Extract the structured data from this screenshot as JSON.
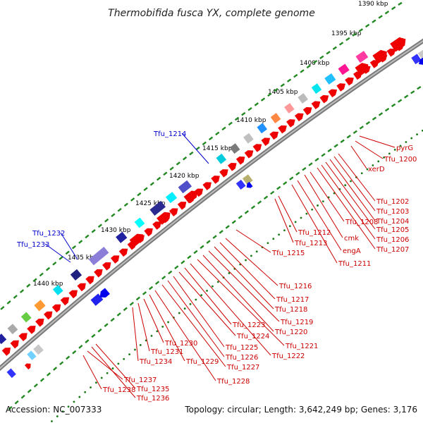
{
  "title": "Thermobifida fusca YX, complete genome",
  "footer": {
    "accession": "Accession: NC_007333",
    "summary": "Topology: circular; Length: 3,642,249 bp; Genes: 3,176"
  },
  "scale_labels": [
    "1390 kbp",
    "1395 kbp",
    "1400 kbp",
    "1405 kbp",
    "1410 kbp",
    "1415 kbp",
    "1420 kbp",
    "1425 kbp",
    "1430 kbp",
    "1435 kbp",
    "1440 kbp"
  ],
  "gene_labels": [
    "pyrG",
    "Tfu_1200",
    "xerD",
    "Tfu_1202",
    "Tfu_1203",
    "Tfu_1204",
    "Tfu_1205",
    "Tfu_1206",
    "Tfu_1207",
    "Tfu_1208",
    "cmk",
    "engA",
    "Tfu_1211",
    "Tfu_1212",
    "Tfu_1213",
    "Tfu_1214",
    "Tfu_1215",
    "Tfu_1216",
    "Tfu_1217",
    "Tfu_1218",
    "Tfu_1219",
    "Tfu_1220",
    "Tfu_1221",
    "Tfu_1222",
    "Tfu_1223",
    "Tfu_1224",
    "Tfu_1225",
    "Tfu_1226",
    "Tfu_1227",
    "Tfu_1228",
    "Tfu_1229",
    "Tfu_1230",
    "Tfu_1231",
    "Tfu_1232",
    "Tfu_1233",
    "Tfu_1234",
    "Tfu_1235",
    "Tfu_1236",
    "Tfu_1237",
    "Tfu_1238"
  ],
  "colors": {
    "forward_gene": "#ee0000",
    "reverse_gene": "#0000ee",
    "backbone": "#777777",
    "gc_dots": "#228822",
    "label_red": "#cc0000",
    "label_blue": "#0000cc"
  }
}
